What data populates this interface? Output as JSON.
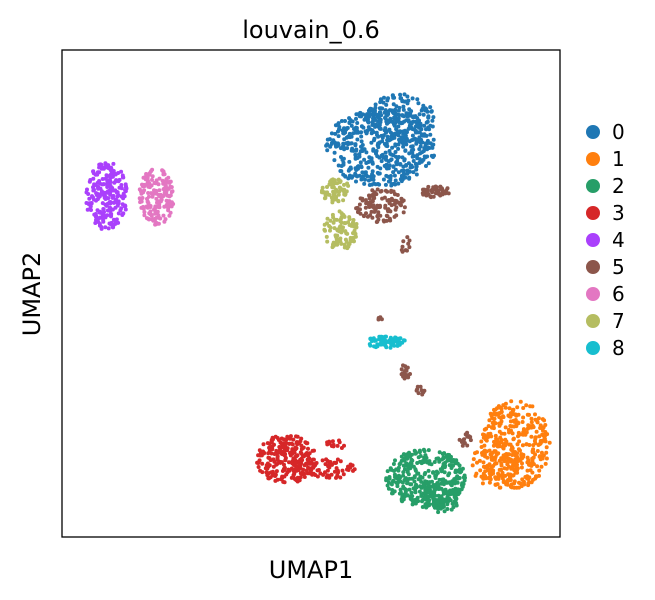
{
  "chart_data": {
    "type": "scatter",
    "title": "louvain_0.6",
    "xlabel": "UMAP1",
    "ylabel": "UMAP2",
    "grid": false,
    "legend_position": "right",
    "xlim": [
      0,
      100
    ],
    "ylim": [
      0,
      100
    ],
    "clusters": [
      {
        "name": "0",
        "color": "#1f77b4",
        "blobs": [
          {
            "cx": 64,
            "cy": 80,
            "rx": 11,
            "ry": 8,
            "n": 480
          },
          {
            "cx": 68,
            "cy": 86,
            "rx": 7,
            "ry": 5,
            "n": 170
          }
        ]
      },
      {
        "name": "1",
        "color": "#ff7f0e",
        "blobs": [
          {
            "cx": 91,
            "cy": 19,
            "rx": 7,
            "ry": 9,
            "n": 330
          },
          {
            "cx": 87,
            "cy": 15,
            "rx": 5,
            "ry": 5,
            "n": 100
          }
        ]
      },
      {
        "name": "2",
        "color": "#279e68",
        "blobs": [
          {
            "cx": 73,
            "cy": 12,
            "rx": 8,
            "ry": 6,
            "n": 360
          },
          {
            "cx": 76,
            "cy": 8,
            "rx": 4,
            "ry": 3,
            "n": 80
          }
        ]
      },
      {
        "name": "3",
        "color": "#d62728",
        "blobs": [
          {
            "cx": 45,
            "cy": 16,
            "rx": 6,
            "ry": 5,
            "n": 250
          },
          {
            "cx": 54,
            "cy": 14,
            "rx": 5,
            "ry": 2,
            "n": 60
          },
          {
            "cx": 55,
            "cy": 19,
            "rx": 2,
            "ry": 1,
            "n": 14
          }
        ]
      },
      {
        "name": "4",
        "color": "#aa40fc",
        "blobs": [
          {
            "cx": 9,
            "cy": 70,
            "rx": 4.2,
            "ry": 7,
            "n": 240
          }
        ]
      },
      {
        "name": "5",
        "color": "#8c564b",
        "blobs": [
          {
            "cx": 64,
            "cy": 68,
            "rx": 5,
            "ry": 3.5,
            "n": 110
          },
          {
            "cx": 75,
            "cy": 71,
            "rx": 3,
            "ry": 1.3,
            "n": 45
          },
          {
            "cx": 69,
            "cy": 60,
            "rx": 1,
            "ry": 2,
            "n": 10
          },
          {
            "cx": 64,
            "cy": 45,
            "rx": 0.5,
            "ry": 0.8,
            "n": 5
          },
          {
            "cx": 69,
            "cy": 34,
            "rx": 1.2,
            "ry": 1.5,
            "n": 20
          },
          {
            "cx": 72,
            "cy": 30,
            "rx": 0.8,
            "ry": 1.2,
            "n": 10
          },
          {
            "cx": 81,
            "cy": 20,
            "rx": 1.2,
            "ry": 1.5,
            "n": 15
          }
        ]
      },
      {
        "name": "6",
        "color": "#e377c2",
        "blobs": [
          {
            "cx": 19,
            "cy": 70,
            "rx": 3.5,
            "ry": 6,
            "n": 180
          }
        ]
      },
      {
        "name": "7",
        "color": "#b5bd61",
        "blobs": [
          {
            "cx": 55,
            "cy": 71,
            "rx": 3,
            "ry": 2.5,
            "n": 60
          },
          {
            "cx": 56,
            "cy": 63,
            "rx": 3.5,
            "ry": 4,
            "n": 100
          }
        ]
      },
      {
        "name": "8",
        "color": "#17becf",
        "blobs": [
          {
            "cx": 65,
            "cy": 40,
            "rx": 4,
            "ry": 1.2,
            "n": 70
          }
        ]
      }
    ]
  }
}
